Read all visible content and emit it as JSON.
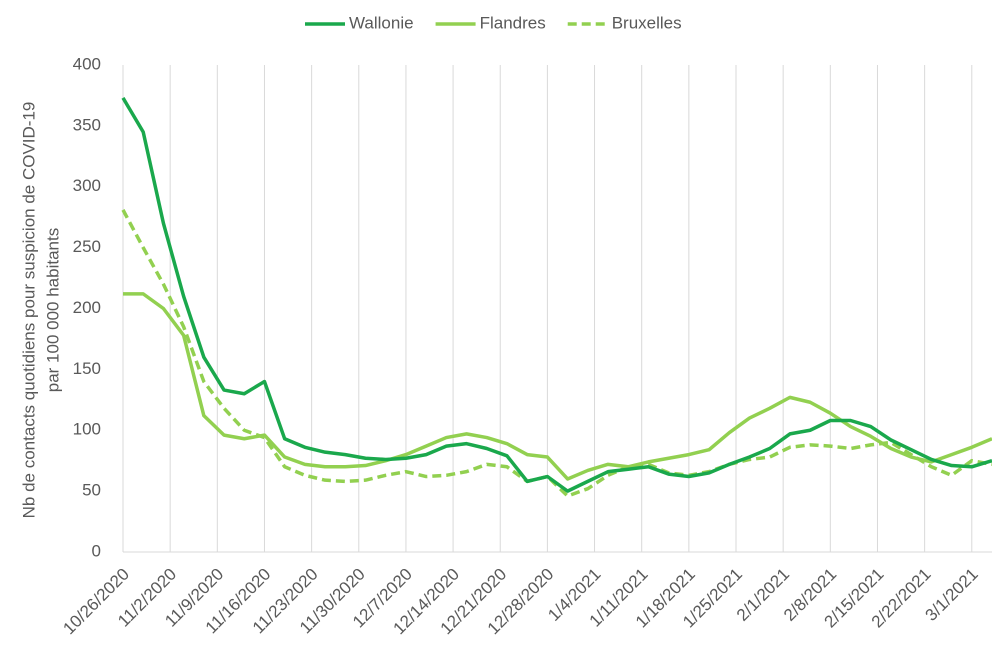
{
  "chart_data": {
    "type": "line",
    "y_label": [
      "Nb de contacts quotidiens pour suspicion de COVID-19",
      "par 100 000 habitants"
    ],
    "x": [
      "10/26/2020",
      "10/29/2020",
      "11/1/2020",
      "11/4/2020",
      "11/7/2020",
      "11/10/2020",
      "11/13/2020",
      "11/16/2020",
      "11/19/2020",
      "11/22/2020",
      "11/25/2020",
      "11/28/2020",
      "12/1/2020",
      "12/4/2020",
      "12/7/2020",
      "12/10/2020",
      "12/13/2020",
      "12/16/2020",
      "12/19/2020",
      "12/22/2020",
      "12/25/2020",
      "12/28/2020",
      "12/31/2020",
      "1/3/2021",
      "1/6/2021",
      "1/9/2021",
      "1/12/2021",
      "1/15/2021",
      "1/18/2021",
      "1/21/2021",
      "1/24/2021",
      "1/27/2021",
      "1/30/2021",
      "2/2/2021",
      "2/5/2021",
      "2/8/2021",
      "2/11/2021",
      "2/14/2021",
      "2/17/2021",
      "2/20/2021",
      "2/23/2021",
      "2/26/2021",
      "3/1/2021",
      "3/4/2021"
    ],
    "series": [
      {
        "name": "Wallonie",
        "color": "#1aa84c",
        "dashed": false,
        "values": [
          373,
          345,
          270,
          210,
          160,
          133,
          130,
          140,
          93,
          86,
          82,
          80,
          77,
          76,
          77,
          80,
          87,
          89,
          85,
          79,
          58,
          62,
          50,
          58,
          66,
          68,
          70,
          64,
          62,
          65,
          72,
          78,
          85,
          97,
          100,
          108,
          108,
          103,
          92,
          84,
          76,
          71,
          70,
          75
        ]
      },
      {
        "name": "Flandres",
        "color": "#92d050",
        "dashed": false,
        "values": [
          212,
          212,
          200,
          178,
          112,
          96,
          93,
          96,
          78,
          72,
          70,
          70,
          71,
          75,
          80,
          87,
          94,
          97,
          94,
          89,
          80,
          78,
          60,
          67,
          72,
          70,
          74,
          77,
          80,
          84,
          98,
          110,
          118,
          127,
          123,
          114,
          103,
          95,
          85,
          78,
          74,
          80,
          86,
          93
        ]
      },
      {
        "name": "Bruxelles",
        "color": "#92d050",
        "dashed": true,
        "values": [
          281,
          250,
          220,
          185,
          140,
          118,
          100,
          94,
          70,
          63,
          59,
          58,
          59,
          63,
          66,
          62,
          63,
          66,
          72,
          70,
          58,
          62,
          46,
          52,
          63,
          70,
          72,
          65,
          63,
          66,
          72,
          76,
          78,
          86,
          88,
          87,
          85,
          88,
          90,
          80,
          70,
          63,
          75,
          72
        ]
      }
    ],
    "xlim": [
      "10/26/2020",
      "3/4/2021"
    ],
    "xticks": [
      "10/26/2020",
      "11/2/2020",
      "11/9/2020",
      "11/16/2020",
      "11/23/2020",
      "11/30/2020",
      "12/7/2020",
      "12/14/2020",
      "12/21/2020",
      "12/28/2020",
      "1/4/2021",
      "1/11/2021",
      "1/18/2021",
      "1/25/2021",
      "2/1/2021",
      "2/8/2021",
      "2/15/2021",
      "2/22/2021",
      "3/1/2021"
    ],
    "ylim": [
      0,
      400
    ],
    "yticks": [
      0,
      50,
      100,
      150,
      200,
      250,
      300,
      350,
      400
    ],
    "grid": true,
    "legend": "top"
  }
}
